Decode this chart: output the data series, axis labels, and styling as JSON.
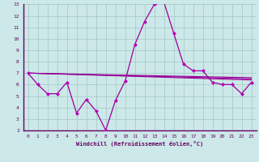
{
  "title": "",
  "xlabel": "Windchill (Refroidissement éolien,°C)",
  "ylabel": "",
  "bg_color": "#cce8e8",
  "grid_color": "#aacccc",
  "line_color": "#990099",
  "marker_color": "#bb00bb",
  "axis_color": "#660066",
  "tick_label_color": "#660066",
  "xlabel_color": "#660066",
  "xlim": [
    -0.5,
    23.5
  ],
  "ylim": [
    2,
    13
  ],
  "xticks": [
    0,
    1,
    2,
    3,
    4,
    5,
    6,
    7,
    8,
    9,
    10,
    11,
    12,
    13,
    14,
    15,
    16,
    17,
    18,
    19,
    20,
    21,
    22,
    23
  ],
  "yticks": [
    2,
    3,
    4,
    5,
    6,
    7,
    8,
    9,
    10,
    11,
    12,
    13
  ],
  "lines": [
    {
      "x": [
        0,
        1,
        2,
        3,
        4,
        5,
        6,
        7,
        8,
        9,
        10,
        11,
        12,
        13,
        14,
        15,
        16,
        17,
        18,
        19,
        20,
        21,
        22,
        23
      ],
      "y": [
        7.0,
        6.0,
        5.2,
        5.2,
        6.2,
        3.5,
        4.7,
        3.7,
        2.0,
        4.6,
        6.3,
        9.5,
        11.5,
        13.0,
        13.2,
        10.5,
        7.8,
        7.2,
        7.2,
        6.2,
        6.0,
        6.0,
        5.2,
        6.2
      ],
      "has_markers": true
    },
    {
      "x": [
        0,
        23
      ],
      "y": [
        7.0,
        6.4
      ],
      "has_markers": false
    },
    {
      "x": [
        0,
        23
      ],
      "y": [
        7.0,
        6.6
      ],
      "has_markers": false
    },
    {
      "x": [
        0,
        23
      ],
      "y": [
        7.0,
        6.5
      ],
      "has_markers": false
    }
  ]
}
